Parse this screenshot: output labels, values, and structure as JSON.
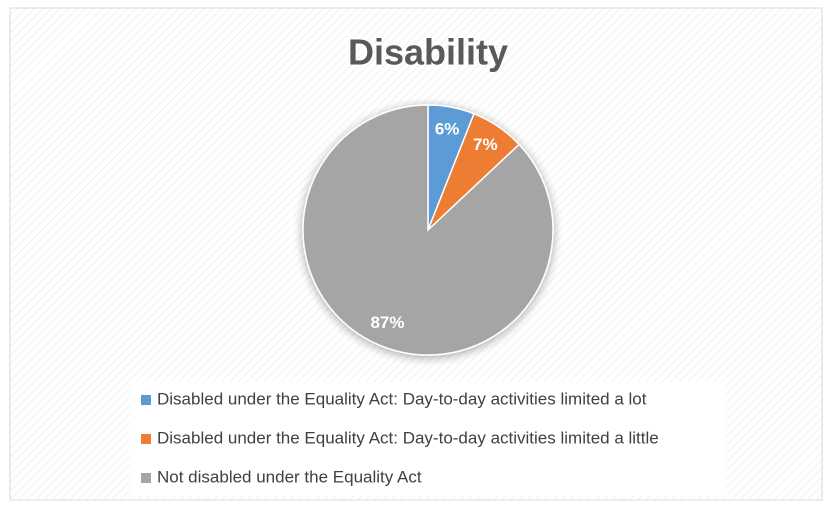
{
  "chart_data": {
    "type": "pie",
    "title": "Disability",
    "categories": [
      "Disabled under the Equality Act: Day-to-day activities limited a lot",
      "Disabled under the Equality Act: Day-to-day activities limited a little",
      "Not disabled under the Equality Act"
    ],
    "values": [
      6,
      7,
      87
    ],
    "value_labels": [
      "6%",
      "7%",
      "87%"
    ],
    "colors": [
      "#5b9bd5",
      "#ed7d31",
      "#a5a5a5"
    ],
    "legend": "bottom"
  }
}
